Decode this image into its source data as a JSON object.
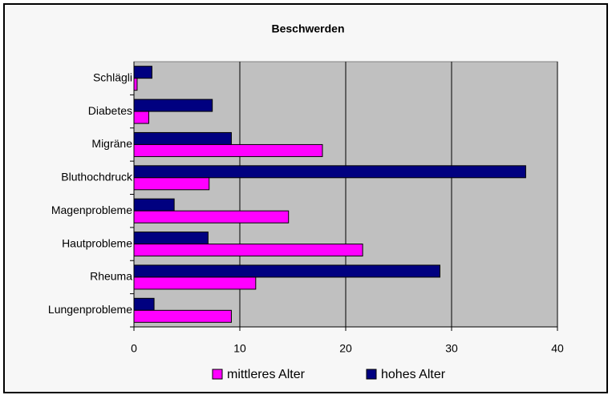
{
  "chart_data": {
    "type": "bar",
    "orientation": "horizontal",
    "title": "Beschwerden",
    "categories": [
      "Schlägli",
      "Diabetes",
      "Migräne",
      "Bluthochdruck",
      "Magenprobleme",
      "Hautprobleme",
      "Rheuma",
      "Lungenprobleme"
    ],
    "series": [
      {
        "name": "mittleres Alter",
        "color": "#ff00ff",
        "values": [
          0.3,
          1.4,
          17.8,
          7.1,
          14.6,
          21.6,
          11.5,
          9.2
        ]
      },
      {
        "name": "hohes Alter",
        "color": "#000080",
        "values": [
          1.7,
          7.4,
          9.2,
          37,
          3.8,
          7,
          28.9,
          1.9
        ]
      }
    ],
    "xlim": [
      0,
      40
    ],
    "xticks": [
      0,
      10,
      20,
      30,
      40
    ],
    "grid": true,
    "legend": "bottom"
  }
}
